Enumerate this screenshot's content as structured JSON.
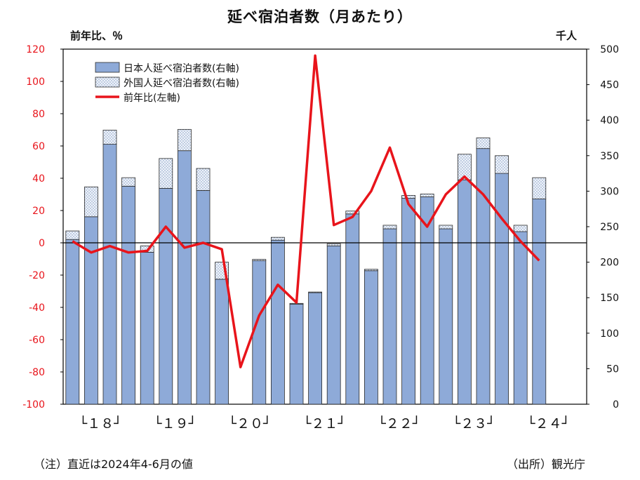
{
  "chart_data": {
    "type": "bar",
    "title": "延べ宿泊者数（月あたり）",
    "left_axis_unit": "前年比、％",
    "right_axis_unit": "千人",
    "y_left": {
      "range": [
        -100,
        120
      ],
      "ticks": [
        -100,
        -80,
        -60,
        -40,
        -20,
        0,
        20,
        40,
        60,
        80,
        100,
        120
      ],
      "tick_labels": [
        "-100",
        "-80",
        "-60",
        "-40",
        "-20",
        "0",
        "20",
        "40",
        "60",
        "80",
        "100",
        "120"
      ]
    },
    "y_right": {
      "range": [
        0,
        500
      ],
      "ticks": [
        0,
        50,
        100,
        150,
        200,
        250,
        300,
        350,
        400,
        450,
        500
      ],
      "tick_labels": [
        "0",
        "50",
        "100",
        "150",
        "200",
        "250",
        "300",
        "350",
        "400",
        "450",
        "500"
      ]
    },
    "year_labels": [
      "└１８┘",
      "└１９┘",
      "└２０┘",
      "└２１┘",
      "└２２┘",
      "└２３┘",
      "└２４┘"
    ],
    "legend": [
      {
        "label": "日本人延べ宿泊者数(右軸)",
        "kind": "bar"
      },
      {
        "label": "外国人延べ宿泊者数(右軸)",
        "kind": "bar-dotted"
      },
      {
        "label": "前年比(左軸)",
        "kind": "line"
      }
    ],
    "series": [
      {
        "name": "日本人延べ宿泊者数(右軸)",
        "axis": "right",
        "unit": "千人",
        "values": [
          232,
          264,
          366,
          307,
          214,
          304,
          357,
          301,
          176,
          0,
          202,
          231,
          141,
          157,
          223,
          268,
          188,
          247,
          290,
          292,
          247,
          316,
          360,
          325,
          243,
          289
        ]
      },
      {
        "name": "外国人延べ宿泊者数(右軸)",
        "axis": "right",
        "unit": "千人",
        "values": [
          12,
          42,
          20,
          12,
          9,
          42,
          30,
          31,
          24,
          0,
          2,
          4,
          1,
          1,
          3,
          4,
          2,
          5,
          4,
          4,
          5,
          36,
          15,
          25,
          9,
          30
        ]
      },
      {
        "name": "前年比(左軸)",
        "axis": "left",
        "unit": "%",
        "values": [
          1,
          -6,
          -2,
          -6,
          -5,
          10,
          -3,
          0,
          -4,
          -77,
          -45,
          -26,
          -37,
          116,
          11,
          16,
          32,
          59,
          24,
          10,
          30,
          41,
          30,
          15,
          1,
          -11
        ]
      }
    ]
  },
  "notes": {
    "left": "（注）直近は2024年4-6月の値",
    "right": "（出所）観光庁"
  },
  "colors": {
    "japanese_bar": "#8eaad8",
    "foreign_bar": "#eef3fa",
    "line": "#e8141b",
    "axis_left_text": "#e8141b"
  }
}
